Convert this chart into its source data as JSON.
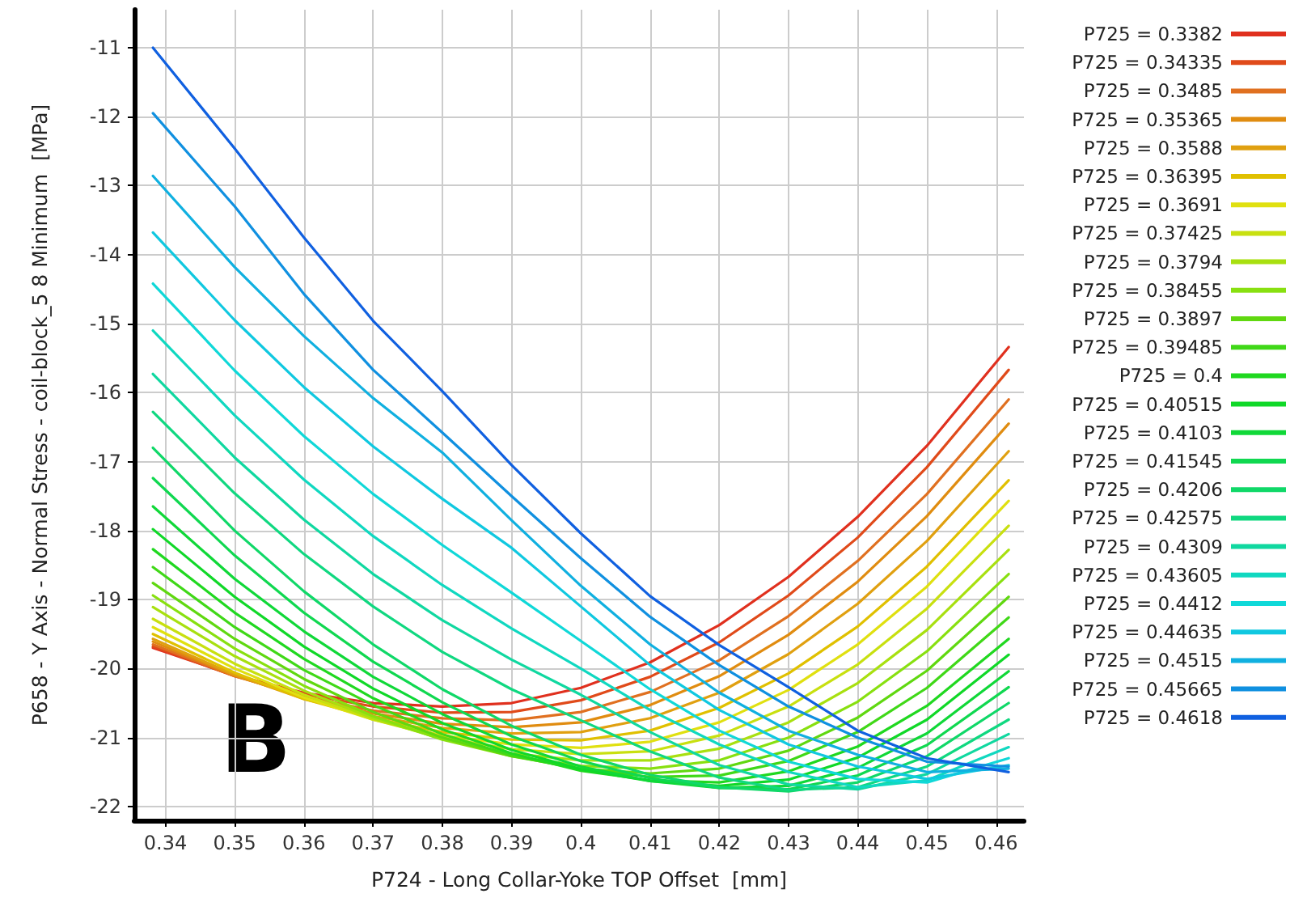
{
  "chart_data": {
    "type": "line",
    "xlabel": "P724 - Long Collar-Yoke TOP Offset  [mm]",
    "ylabel": "P658 - Y Axis - Normal Stress - coil-block_5 8 Minimum  [MPa]",
    "annotations": [
      "B"
    ],
    "x": [
      0.3382,
      0.35,
      0.36,
      0.37,
      0.38,
      0.39,
      0.4,
      0.41,
      0.42,
      0.43,
      0.44,
      0.45,
      0.4618
    ],
    "xlim": [
      0.3355,
      0.464
    ],
    "xticks": [
      0.34,
      0.35,
      0.36,
      0.37,
      0.38,
      0.39,
      0.4,
      0.41,
      0.42,
      0.43,
      0.44,
      0.45,
      0.46
    ],
    "ylim": [
      -22.2,
      -10.45
    ],
    "yticks": [
      -22,
      -21,
      -20,
      -19,
      -18,
      -17,
      -16,
      -15,
      -14,
      -13,
      -12,
      -11
    ],
    "grid": true,
    "legend": "right",
    "marker": "none",
    "line_style": "solid",
    "series": [
      {
        "name": "P725 = 0.3382",
        "color": "#e0301e",
        "values": [
          -19.7,
          -20.1,
          -20.35,
          -20.5,
          -20.55,
          -20.5,
          -20.28,
          -19.91,
          -19.37,
          -18.67,
          -17.8,
          -16.77,
          -15.34
        ]
      },
      {
        "name": "P725 = 0.34335",
        "color": "#e04a1a",
        "values": [
          -19.68,
          -20.11,
          -20.37,
          -20.55,
          -20.64,
          -20.63,
          -20.46,
          -20.12,
          -19.62,
          -18.94,
          -18.1,
          -17.08,
          -15.67
        ]
      },
      {
        "name": "P725 = 0.3485",
        "color": "#e07020",
        "values": [
          -19.65,
          -20.11,
          -20.4,
          -20.61,
          -20.72,
          -20.75,
          -20.63,
          -20.34,
          -19.88,
          -19.24,
          -18.44,
          -17.47,
          -16.1
        ]
      },
      {
        "name": "P725 = 0.35365",
        "color": "#e08c10",
        "values": [
          -19.61,
          -20.1,
          -20.42,
          -20.65,
          -20.8,
          -20.85,
          -20.78,
          -20.53,
          -20.11,
          -19.51,
          -18.74,
          -17.79,
          -16.45
        ]
      },
      {
        "name": "P725 = 0.3588",
        "color": "#e0a010",
        "values": [
          -19.57,
          -20.09,
          -20.44,
          -20.69,
          -20.86,
          -20.94,
          -20.92,
          -20.72,
          -20.35,
          -19.79,
          -19.06,
          -18.15,
          -16.85
        ]
      },
      {
        "name": "P725 = 0.36395",
        "color": "#e0c000",
        "values": [
          -19.5,
          -20.06,
          -20.44,
          -20.72,
          -20.92,
          -21.03,
          -21.04,
          -20.9,
          -20.57,
          -20.07,
          -19.39,
          -18.52,
          -17.27
        ]
      },
      {
        "name": "P725 = 0.3691",
        "color": "#e0e010",
        "values": [
          -19.4,
          -20.0,
          -20.42,
          -20.74,
          -20.97,
          -21.1,
          -21.15,
          -21.06,
          -20.78,
          -20.31,
          -19.65,
          -18.81,
          -17.57
        ]
      },
      {
        "name": "P725 = 0.37425",
        "color": "#c8e010",
        "values": [
          -19.28,
          -19.93,
          -20.38,
          -20.74,
          -21.0,
          -21.17,
          -21.24,
          -21.2,
          -20.97,
          -20.55,
          -19.94,
          -19.13,
          -17.93
        ]
      },
      {
        "name": "P725 = 0.3794",
        "color": "#a8e010",
        "values": [
          -19.11,
          -19.82,
          -20.32,
          -20.72,
          -21.02,
          -21.23,
          -21.33,
          -21.33,
          -21.16,
          -20.78,
          -20.21,
          -19.44,
          -18.28
        ]
      },
      {
        "name": "P725 = 0.38455",
        "color": "#88e010",
        "values": [
          -18.94,
          -19.71,
          -20.25,
          -20.69,
          -21.03,
          -21.27,
          -21.41,
          -21.45,
          -21.33,
          -21.0,
          -20.48,
          -19.75,
          -18.63
        ]
      },
      {
        "name": "P725 = 0.3897",
        "color": "#60d810",
        "values": [
          -18.76,
          -19.57,
          -20.15,
          -20.63,
          -21.0,
          -21.27,
          -21.45,
          -21.52,
          -21.45,
          -21.19,
          -20.71,
          -20.03,
          -18.96
        ]
      },
      {
        "name": "P725 = 0.39485",
        "color": "#40d818",
        "values": [
          -18.53,
          -19.4,
          -20.02,
          -20.53,
          -20.95,
          -21.26,
          -21.46,
          -21.57,
          -21.55,
          -21.34,
          -20.92,
          -20.28,
          -19.26
        ]
      },
      {
        "name": "P725 = 0.4",
        "color": "#20d820",
        "values": [
          -18.27,
          -19.19,
          -19.86,
          -20.43,
          -20.88,
          -21.23,
          -21.48,
          -21.62,
          -21.65,
          -21.49,
          -21.13,
          -20.54,
          -19.57
        ]
      },
      {
        "name": "P725 = 0.40515",
        "color": "#10d828",
        "values": [
          -17.98,
          -18.96,
          -19.68,
          -20.29,
          -20.79,
          -21.18,
          -21.46,
          -21.63,
          -21.7,
          -21.61,
          -21.29,
          -20.74,
          -19.8
        ]
      },
      {
        "name": "P725 = 0.4103",
        "color": "#10d838",
        "values": [
          -17.65,
          -18.7,
          -19.46,
          -20.12,
          -20.66,
          -21.1,
          -21.42,
          -21.63,
          -21.73,
          -21.7,
          -21.44,
          -20.94,
          -20.04
        ]
      },
      {
        "name": "P725 = 0.41545",
        "color": "#10d850",
        "values": [
          -17.24,
          -18.36,
          -19.19,
          -19.9,
          -20.49,
          -20.98,
          -21.34,
          -21.59,
          -21.73,
          -21.75,
          -21.55,
          -21.11,
          -20.27
        ]
      },
      {
        "name": "P725 = 0.4206",
        "color": "#10d868",
        "values": [
          -16.8,
          -18.0,
          -18.88,
          -19.65,
          -20.3,
          -20.83,
          -21.25,
          -21.54,
          -21.72,
          -21.78,
          -21.65,
          -21.27,
          -20.5
        ]
      },
      {
        "name": "P725 = 0.42575",
        "color": "#10d880",
        "values": [
          -16.28,
          -17.46,
          -18.34,
          -19.1,
          -19.76,
          -20.3,
          -20.75,
          -21.2,
          -21.58,
          -21.76,
          -21.72,
          -21.42,
          -20.74
        ]
      },
      {
        "name": "P725 = 0.4309",
        "color": "#10d8a0",
        "values": [
          -15.73,
          -16.94,
          -17.84,
          -18.63,
          -19.3,
          -19.87,
          -20.38,
          -20.92,
          -21.4,
          -21.68,
          -21.75,
          -21.53,
          -20.95
        ]
      },
      {
        "name": "P725 = 0.43605",
        "color": "#10d8c0",
        "values": [
          -15.1,
          -16.33,
          -17.26,
          -18.08,
          -18.79,
          -19.42,
          -20.0,
          -20.6,
          -21.1,
          -21.5,
          -21.72,
          -21.62,
          -21.14
        ]
      },
      {
        "name": "P725 = 0.4412",
        "color": "#10d8d8",
        "values": [
          -14.42,
          -15.68,
          -16.63,
          -17.47,
          -18.21,
          -18.9,
          -19.6,
          -20.3,
          -20.9,
          -21.35,
          -21.6,
          -21.65,
          -21.3
        ]
      },
      {
        "name": "P725 = 0.44635",
        "color": "#10c8e0",
        "values": [
          -13.68,
          -14.95,
          -15.92,
          -16.78,
          -17.54,
          -18.25,
          -19.1,
          -19.95,
          -20.6,
          -21.1,
          -21.42,
          -21.6,
          -21.4
        ]
      },
      {
        "name": "P725 = 0.4515",
        "color": "#10b0e0",
        "values": [
          -12.86,
          -14.18,
          -15.18,
          -16.08,
          -16.87,
          -17.85,
          -18.8,
          -19.65,
          -20.35,
          -20.9,
          -21.25,
          -21.5,
          -21.45
        ]
      },
      {
        "name": "P725 = 0.45665",
        "color": "#1090e0",
        "values": [
          -11.95,
          -13.3,
          -14.57,
          -15.67,
          -16.58,
          -17.5,
          -18.4,
          -19.25,
          -19.95,
          -20.55,
          -21.0,
          -21.35,
          -21.42
        ]
      },
      {
        "name": "P725 = 0.4618",
        "color": "#1060e0",
        "values": [
          -11.0,
          -12.46,
          -13.75,
          -14.96,
          -15.98,
          -17.05,
          -18.04,
          -18.95,
          -19.66,
          -20.27,
          -20.9,
          -21.3,
          -21.5
        ]
      }
    ]
  }
}
